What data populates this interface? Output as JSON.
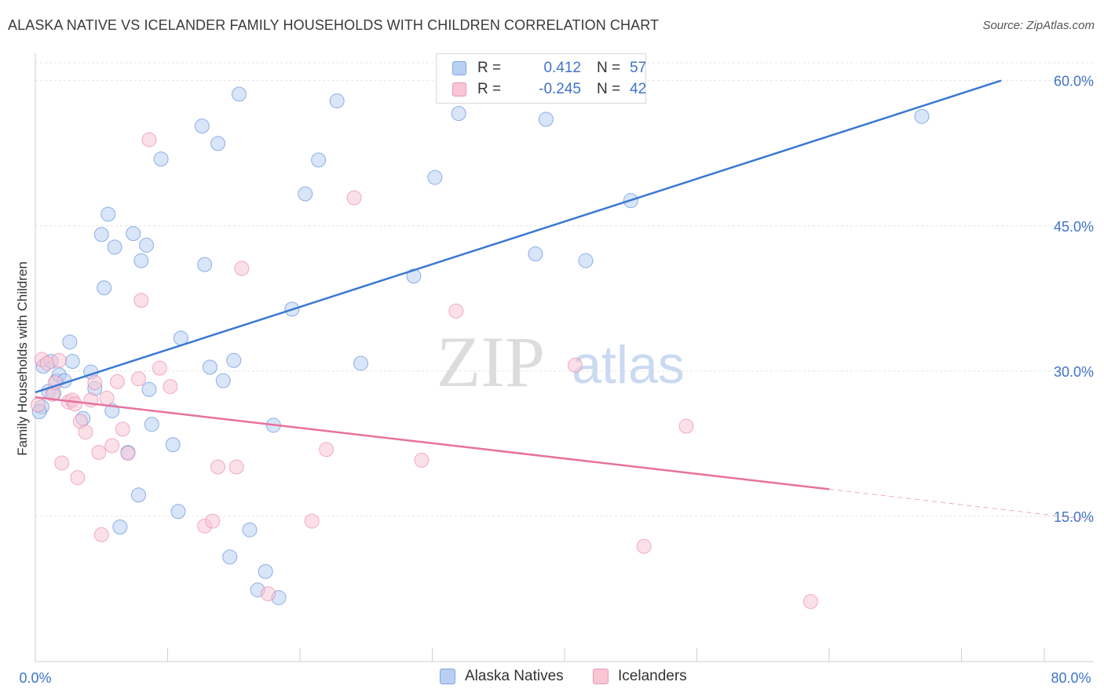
{
  "header": {
    "title": "ALASKA NATIVE VS ICELANDER FAMILY HOUSEHOLDS WITH CHILDREN CORRELATION CHART",
    "source": "Source: ZipAtlas.com"
  },
  "watermark": {
    "zip": "ZIP",
    "atlas": "atlas"
  },
  "legend": {
    "r_label": "R =",
    "n_label": "N =",
    "series": [
      {
        "name": "Alaska Natives",
        "r": "0.412",
        "n": "57",
        "color": "#3a78d4"
      },
      {
        "name": "Icelanders",
        "r": "-0.245",
        "n": "42",
        "color": "#e8719b"
      }
    ]
  },
  "chart_data": {
    "type": "scatter",
    "title": "ALASKA NATIVE VS ICELANDER FAMILY HOUSEHOLDS WITH CHILDREN CORRELATION CHART",
    "xlabel": "",
    "ylabel": "Family Households with Children",
    "xlim": [
      0,
      80
    ],
    "ylim": [
      0,
      62
    ],
    "x_tick_labels": [
      "0.0%",
      "80.0%"
    ],
    "y_ticks": [
      15,
      30,
      45,
      60
    ],
    "y_tick_labels": [
      "15.0%",
      "30.0%",
      "45.0%",
      "60.0%"
    ],
    "grid": true,
    "series": [
      {
        "name": "Alaska Natives",
        "color": "#3a78d4",
        "fill": "#b9d0f3",
        "points": [
          [
            0.5,
            26.3
          ],
          [
            0.3,
            25.8
          ],
          [
            0.6,
            30.5
          ],
          [
            1,
            27.9
          ],
          [
            1.2,
            31.0
          ],
          [
            1.6,
            29.0
          ],
          [
            1.8,
            29.6
          ],
          [
            2.2,
            29.0
          ],
          [
            2.6,
            33.0
          ],
          [
            2.8,
            31.0
          ],
          [
            3.6,
            25.1
          ],
          [
            4.2,
            29.9
          ],
          [
            4.5,
            28.2
          ],
          [
            5.0,
            44.1
          ],
          [
            5.2,
            38.6
          ],
          [
            5.5,
            46.2
          ],
          [
            5.8,
            25.9
          ],
          [
            6.0,
            42.8
          ],
          [
            6.4,
            13.9
          ],
          [
            7.0,
            21.6
          ],
          [
            7.4,
            44.2
          ],
          [
            7.8,
            17.2
          ],
          [
            8.0,
            41.4
          ],
          [
            8.4,
            43.0
          ],
          [
            8.6,
            28.1
          ],
          [
            8.8,
            24.5
          ],
          [
            9.5,
            51.9
          ],
          [
            10.4,
            22.4
          ],
          [
            10.8,
            15.5
          ],
          [
            11.0,
            33.4
          ],
          [
            12.6,
            55.3
          ],
          [
            12.8,
            41.0
          ],
          [
            13.2,
            30.4
          ],
          [
            13.8,
            53.5
          ],
          [
            14.2,
            29.0
          ],
          [
            14.7,
            10.8
          ],
          [
            15.0,
            31.1
          ],
          [
            15.4,
            58.6
          ],
          [
            16.2,
            13.6
          ],
          [
            16.8,
            7.4
          ],
          [
            17.4,
            9.3
          ],
          [
            18.0,
            24.4
          ],
          [
            18.4,
            6.6
          ],
          [
            19.4,
            36.4
          ],
          [
            20.4,
            48.3
          ],
          [
            21.4,
            51.8
          ],
          [
            22.8,
            57.9
          ],
          [
            24.6,
            30.8
          ],
          [
            28.6,
            39.8
          ],
          [
            30.2,
            50.0
          ],
          [
            32.0,
            56.6
          ],
          [
            37.8,
            42.1
          ],
          [
            38.6,
            56.0
          ],
          [
            41.6,
            41.4
          ],
          [
            45.0,
            47.6
          ],
          [
            67.0,
            56.3
          ],
          [
            1.4,
            27.7
          ]
        ]
      },
      {
        "name": "Icelanders",
        "color": "#e8719b",
        "fill": "#f8c6d5",
        "points": [
          [
            0.2,
            26.5
          ],
          [
            0.5,
            31.2
          ],
          [
            0.9,
            30.8
          ],
          [
            1.3,
            27.6
          ],
          [
            1.5,
            28.8
          ],
          [
            1.8,
            31.1
          ],
          [
            2.0,
            20.5
          ],
          [
            2.5,
            26.8
          ],
          [
            2.8,
            27.0
          ],
          [
            3.0,
            26.6
          ],
          [
            3.2,
            19.0
          ],
          [
            3.4,
            24.8
          ],
          [
            3.8,
            23.7
          ],
          [
            4.2,
            27.0
          ],
          [
            4.5,
            28.8
          ],
          [
            4.8,
            21.6
          ],
          [
            5.0,
            13.1
          ],
          [
            5.4,
            27.2
          ],
          [
            5.8,
            22.3
          ],
          [
            6.2,
            28.9
          ],
          [
            6.6,
            24.0
          ],
          [
            7.0,
            21.5
          ],
          [
            7.8,
            29.2
          ],
          [
            8.0,
            37.3
          ],
          [
            8.6,
            53.9
          ],
          [
            9.4,
            30.3
          ],
          [
            10.2,
            28.4
          ],
          [
            12.8,
            14.0
          ],
          [
            13.4,
            14.5
          ],
          [
            13.8,
            20.1
          ],
          [
            15.2,
            20.1
          ],
          [
            15.6,
            40.6
          ],
          [
            17.6,
            7.0
          ],
          [
            20.9,
            14.5
          ],
          [
            22.0,
            21.9
          ],
          [
            24.1,
            47.9
          ],
          [
            29.2,
            20.8
          ],
          [
            31.8,
            36.2
          ],
          [
            40.8,
            30.6
          ],
          [
            46.0,
            11.9
          ],
          [
            49.2,
            24.3
          ],
          [
            58.6,
            6.2
          ]
        ]
      }
    ],
    "trendlines": [
      {
        "series": "Alaska Natives",
        "from": [
          0,
          27.8
        ],
        "to": [
          73,
          60.0
        ],
        "style": "solid"
      },
      {
        "series": "Icelanders",
        "from": [
          0,
          27.3
        ],
        "to": [
          60,
          17.8
        ],
        "style": "solid"
      },
      {
        "series": "Icelanders",
        "from": [
          60,
          17.8
        ],
        "to": [
          80,
          14.6
        ],
        "style": "dashed"
      }
    ]
  }
}
